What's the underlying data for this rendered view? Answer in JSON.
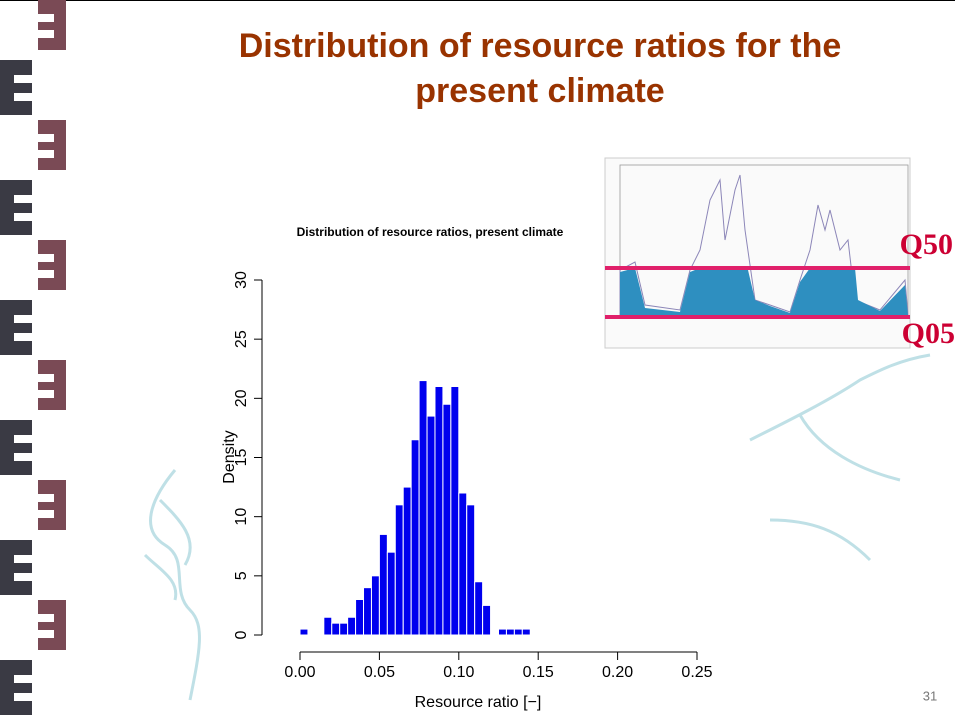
{
  "slide": {
    "title_line1": "Distribution of resource ratios for the",
    "title_line2": "present climate",
    "page_number": "31"
  },
  "inset": {
    "labels": [
      "Q50",
      "Q05"
    ]
  },
  "chart_data": {
    "type": "histogram",
    "title": "Distribution of resource ratios, present climate",
    "x_label": "Resource ratio [−]",
    "y_label": "Density",
    "color": "#0000ee",
    "bins": [
      0,
      0.005,
      0.01,
      0.015,
      0.02,
      0.025,
      0.03,
      0.035,
      0.04,
      0.045,
      0.05,
      0.055,
      0.06,
      0.065,
      0.07,
      0.075,
      0.08,
      0.085,
      0.09,
      0.095,
      0.1,
      0.105,
      0.11,
      0.115,
      0.12,
      0.125,
      0.13,
      0.135,
      0.14,
      0.145
    ],
    "values": [
      0.5,
      0,
      0,
      1.5,
      1,
      1,
      1.5,
      3,
      4,
      5,
      8.5,
      7,
      11,
      12.5,
      16.5,
      21.5,
      18.5,
      21,
      19.5,
      21,
      12,
      11,
      4.5,
      2.5,
      0,
      0.5,
      0.5,
      0.5,
      0.5
    ],
    "xlim": [
      0,
      0.25
    ],
    "ylim": [
      0,
      30
    ],
    "xticks": [
      {
        "value": 0,
        "label": "0.00"
      },
      0.05,
      {
        "value": 0.1,
        "label": "0.10"
      },
      0.15,
      {
        "value": 0.2,
        "label": "0.20"
      },
      0.25
    ],
    "yticks": [
      0,
      5,
      10,
      15,
      20,
      25,
      30
    ]
  }
}
